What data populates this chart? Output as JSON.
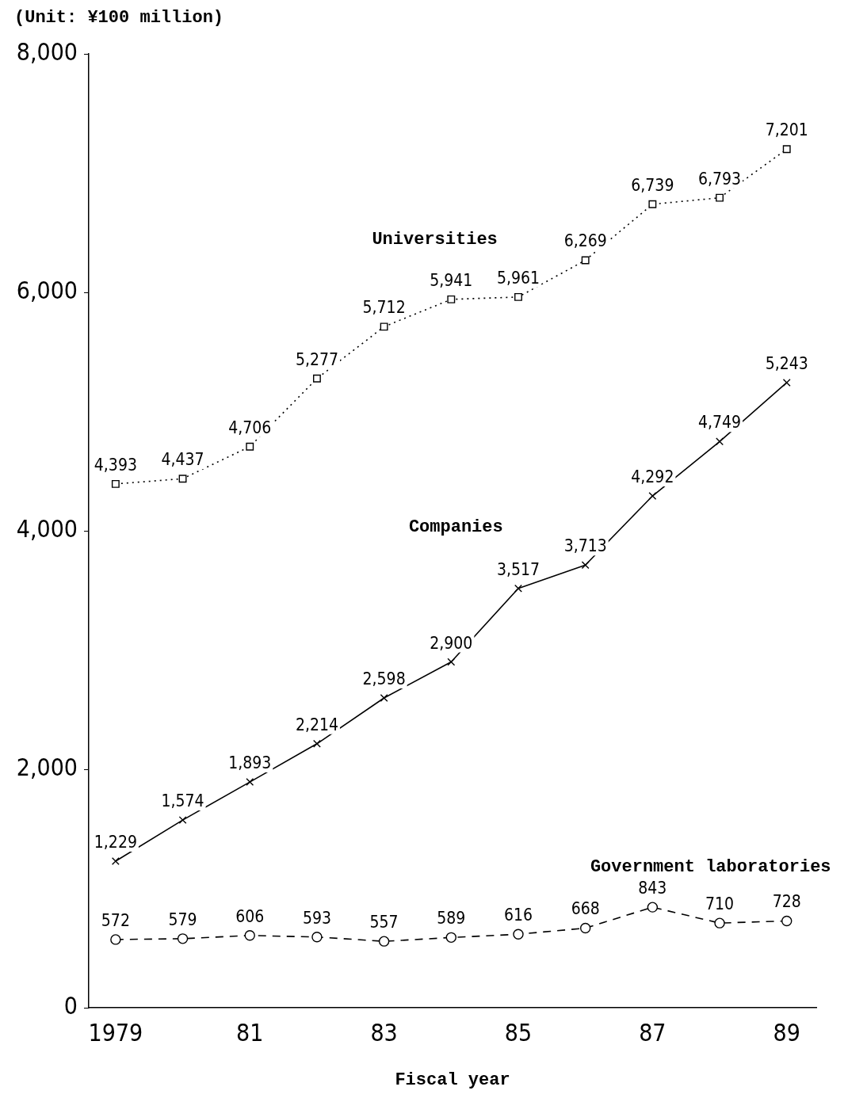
{
  "chart_data": {
    "type": "line",
    "ylabel": "(Unit: ¥100 million)",
    "xlabel": "Fiscal year",
    "x": [
      1979,
      1980,
      1981,
      1982,
      1983,
      1984,
      1985,
      1986,
      1987,
      1988,
      1989
    ],
    "xlim": [
      1978.6,
      1989.44
    ],
    "xticks": [
      {
        "value": 1979,
        "label": "1979"
      },
      {
        "value": 1981,
        "label": "81"
      },
      {
        "value": 1983,
        "label": "83"
      },
      {
        "value": 1985,
        "label": "85"
      },
      {
        "value": 1987,
        "label": "87"
      },
      {
        "value": 1989,
        "label": "89"
      }
    ],
    "ylim": [
      0,
      8000
    ],
    "yticks": [
      {
        "value": 0,
        "label": "0"
      },
      {
        "value": 2000,
        "label": "2,000"
      },
      {
        "value": 4000,
        "label": "4,000"
      },
      {
        "value": 6000,
        "label": "6,000"
      },
      {
        "value": 8000,
        "label": "8,000"
      }
    ],
    "grid": false,
    "legend": false,
    "series": [
      {
        "name": "Universities",
        "color": "#000000",
        "marker": "square",
        "line_style": "dotted",
        "values": [
          4393,
          4437,
          4706,
          5277,
          5712,
          5941,
          5961,
          6269,
          6739,
          6793,
          7201
        ],
        "value_labels": [
          "4,393",
          "4,437",
          "4,706",
          "5,277",
          "5,712",
          "5,941",
          "5,961",
          "6,269",
          "6,739",
          "6,793",
          "7,201"
        ]
      },
      {
        "name": "Companies",
        "color": "#000000",
        "marker": "cross",
        "line_style": "solid",
        "values": [
          1229,
          1574,
          1893,
          2214,
          2598,
          2900,
          3517,
          3713,
          4292,
          4749,
          5243
        ],
        "value_labels": [
          "1,229",
          "1,574",
          "1,893",
          "2,214",
          "2,598",
          "2,900",
          "3,517",
          "3,713",
          "4,292",
          "4,749",
          "5,243"
        ]
      },
      {
        "name": "Government laboratories",
        "color": "#000000",
        "marker": "circle",
        "line_style": "dashed",
        "values": [
          572,
          579,
          606,
          593,
          557,
          589,
          616,
          668,
          843,
          710,
          728
        ],
        "value_labels": [
          "572",
          "579",
          "606",
          "593",
          "557",
          "589",
          "616",
          "668",
          "843",
          "710",
          "728"
        ]
      }
    ]
  }
}
